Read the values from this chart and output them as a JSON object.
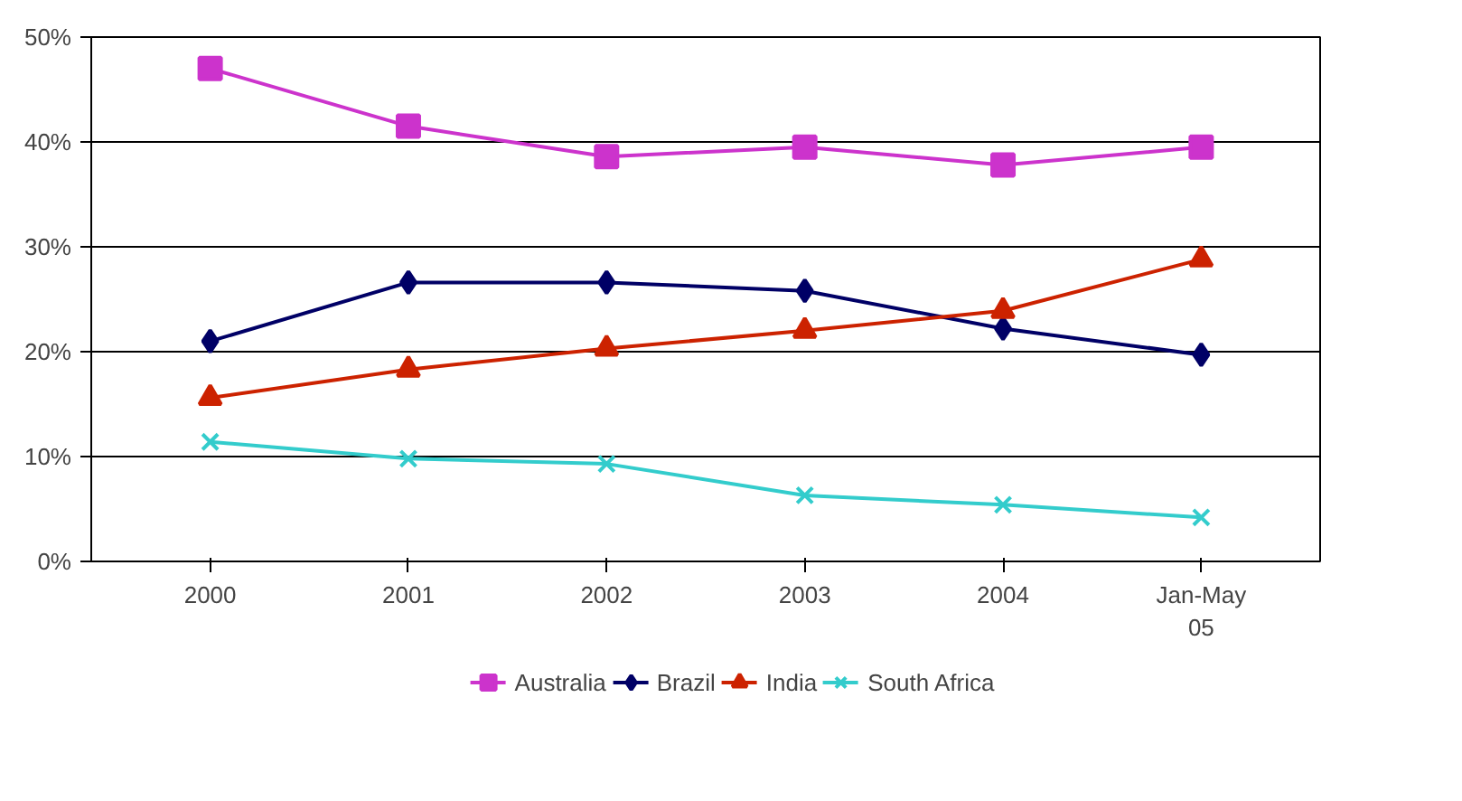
{
  "chart_data": {
    "type": "line",
    "categories": [
      "2000",
      "2001",
      "2002",
      "2003",
      "2004",
      "Jan-May\n05"
    ],
    "ylim": [
      0,
      50
    ],
    "yticks": [
      {
        "value": 0,
        "label": "0%"
      },
      {
        "value": 10,
        "label": "10%"
      },
      {
        "value": 20,
        "label": "20%"
      },
      {
        "value": 30,
        "label": "30%"
      },
      {
        "value": 40,
        "label": "40%"
      },
      {
        "value": 50,
        "label": "50%"
      }
    ],
    "grid": "y",
    "legend": "bottom",
    "line_style": "solid",
    "series": [
      {
        "name": "Australia",
        "color": "#cc33cc",
        "marker": "square",
        "values": [
          47,
          41.5,
          38.6,
          39.5,
          37.8,
          39.5
        ]
      },
      {
        "name": "Brazil",
        "color": "#000066",
        "marker": "diamond",
        "values": [
          21,
          26.6,
          26.6,
          25.8,
          22.2,
          19.7
        ]
      },
      {
        "name": "India",
        "color": "#cc2200",
        "marker": "triangle",
        "values": [
          15.6,
          18.3,
          20.3,
          22,
          23.9,
          28.8
        ]
      },
      {
        "name": "South Africa",
        "color": "#33cccc",
        "marker": "cross",
        "values": [
          11.4,
          9.8,
          9.3,
          6.3,
          5.4,
          4.2
        ]
      }
    ]
  }
}
